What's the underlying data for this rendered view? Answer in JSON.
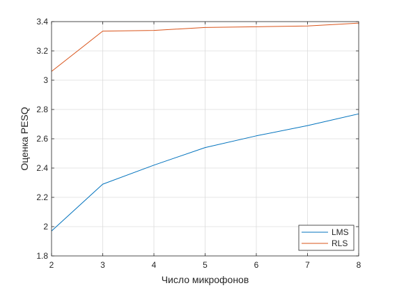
{
  "chart_data": {
    "type": "line",
    "xlabel": "Число микрофонов",
    "ylabel": "Оценка PESQ",
    "xlim": [
      2,
      8
    ],
    "ylim": [
      1.8,
      3.4
    ],
    "grid": true,
    "legend_position": "bottom-right",
    "x": [
      2,
      3,
      4,
      5,
      6,
      7,
      8
    ],
    "x_ticks": [
      "2",
      "3",
      "4",
      "5",
      "6",
      "7",
      "8"
    ],
    "y_ticks": [
      "1.8",
      "2",
      "2.2",
      "2.4",
      "2.6",
      "2.8",
      "3",
      "3.2",
      "3.4"
    ],
    "series": [
      {
        "name": "LMS",
        "color": "#0072BD",
        "values": [
          1.97,
          2.29,
          2.42,
          2.54,
          2.62,
          2.69,
          2.77
        ]
      },
      {
        "name": "RLS",
        "color": "#D95319",
        "values": [
          3.06,
          3.335,
          3.34,
          3.36,
          3.365,
          3.37,
          3.39
        ]
      }
    ]
  }
}
